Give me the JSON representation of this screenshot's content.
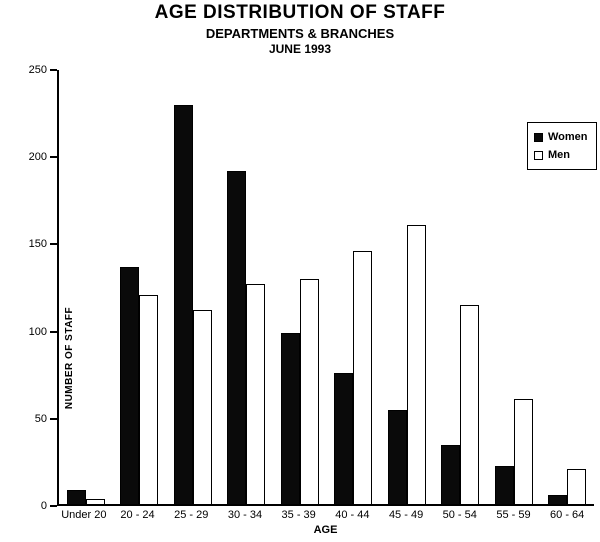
{
  "chart_data": {
    "type": "bar",
    "title": "AGE DISTRIBUTION OF STAFF",
    "subtitle": "DEPARTMENTS & BRANCHES",
    "date_label": "JUNE 1993",
    "xlabel": "AGE",
    "ylabel": "NUMBER OF STAFF",
    "ylim": [
      0,
      250
    ],
    "yticks": [
      0,
      50,
      100,
      150,
      200,
      250
    ],
    "grid": false,
    "legend_position": "top-right",
    "categories": [
      "Under 20",
      "20 - 24",
      "25 - 29",
      "30 - 34",
      "35 - 39",
      "40 - 44",
      "45 - 49",
      "50 - 54",
      "55 - 59",
      "60 - 64"
    ],
    "series": [
      {
        "name": "Women",
        "color": "#0a0a0a",
        "values": [
          8,
          136,
          229,
          191,
          98,
          75,
          54,
          34,
          22,
          5
        ]
      },
      {
        "name": "Men",
        "color": "#ffffff",
        "values": [
          3,
          120,
          111,
          126,
          129,
          145,
          160,
          114,
          60,
          20
        ]
      }
    ]
  }
}
